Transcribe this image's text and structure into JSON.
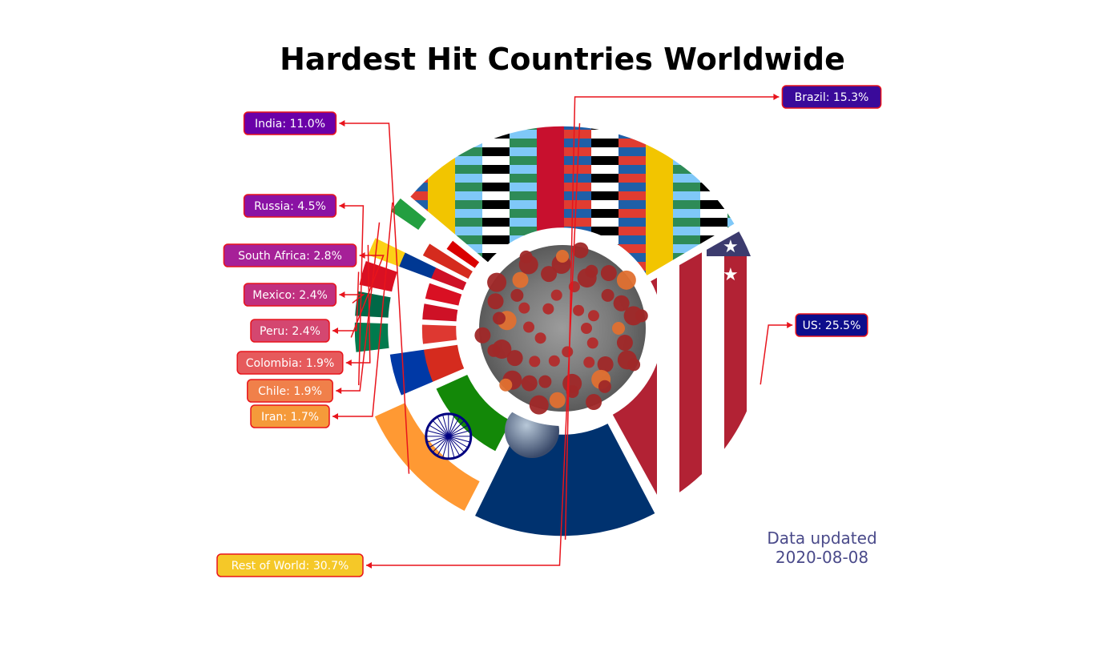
{
  "title": "Hardest Hit Countries Worldwide",
  "updated_label": "Data updated",
  "updated_date": "2020-08-08",
  "chart_data": {
    "type": "pie",
    "title": "Hardest Hit Countries Worldwide",
    "slices": [
      {
        "name": "US",
        "value": 25.5,
        "label": "US: 25.5%",
        "box_color": "#0d0d8c"
      },
      {
        "name": "Brazil",
        "value": 15.3,
        "label": "Brazil: 15.3%",
        "box_color": "#3a0a9a"
      },
      {
        "name": "India",
        "value": 11.0,
        "label": "India: 11.0%",
        "box_color": "#6a00a8"
      },
      {
        "name": "Russia",
        "value": 4.5,
        "label": "Russia: 4.5%",
        "box_color": "#8a12a4"
      },
      {
        "name": "South Africa",
        "value": 2.8,
        "label": "South Africa: 2.8%",
        "box_color": "#a62098"
      },
      {
        "name": "Mexico",
        "value": 2.4,
        "label": "Mexico: 2.4%",
        "box_color": "#c0307f"
      },
      {
        "name": "Peru",
        "value": 2.4,
        "label": "Peru: 2.4%",
        "box_color": "#d44770"
      },
      {
        "name": "Colombia",
        "value": 1.9,
        "label": "Colombia: 1.9%",
        "box_color": "#e65a5c"
      },
      {
        "name": "Chile",
        "value": 1.9,
        "label": "Chile: 1.9%",
        "box_color": "#f0804a"
      },
      {
        "name": "Iran",
        "value": 1.7,
        "label": "Iran: 1.7%",
        "box_color": "#f59a3a"
      },
      {
        "name": "Rest of World",
        "value": 30.7,
        "label": "Rest of World: 30.7%",
        "box_color": "#f5c828"
      }
    ],
    "leader_color": "#e8141c",
    "box_border_color": "#e8141c",
    "center_image": "coronavirus-icon",
    "wedge_fills": "country-flag-images"
  }
}
